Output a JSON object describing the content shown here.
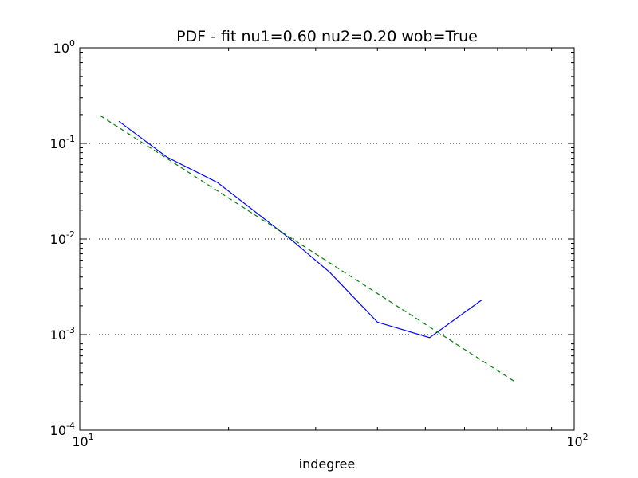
{
  "chart_data": {
    "type": "line",
    "title": "PDF - fit nu1=0.60 nu2=0.20 wob=True",
    "xlabel": "indegree",
    "ylabel": "",
    "xscale": "log",
    "yscale": "log",
    "xlim": [
      10,
      100
    ],
    "ylim": [
      0.0001,
      1
    ],
    "grid": "y-major-dotted",
    "x_ticks": [
      {
        "value": 10,
        "base": "10",
        "exp": "1"
      },
      {
        "value": 100,
        "base": "10",
        "exp": "2"
      }
    ],
    "y_ticks": [
      {
        "value": 1,
        "base": "10",
        "exp": "0"
      },
      {
        "value": 0.1,
        "base": "10",
        "exp": "-1"
      },
      {
        "value": 0.01,
        "base": "10",
        "exp": "-2"
      },
      {
        "value": 0.001,
        "base": "10",
        "exp": "-3"
      },
      {
        "value": 0.0001,
        "base": "10",
        "exp": "-4"
      }
    ],
    "series": [
      {
        "color": "#0000ff",
        "style": "solid",
        "x": [
          12.0,
          15.0,
          19.0,
          27.0,
          32.0,
          40.0,
          51.0,
          65.0
        ],
        "y": [
          0.17,
          0.072,
          0.039,
          0.0095,
          0.0045,
          0.00135,
          0.00093,
          0.0023
        ]
      },
      {
        "color": "#008000",
        "style": "dashed",
        "x": [
          11.0,
          76.0
        ],
        "y": [
          0.195,
          0.00032
        ]
      }
    ]
  }
}
